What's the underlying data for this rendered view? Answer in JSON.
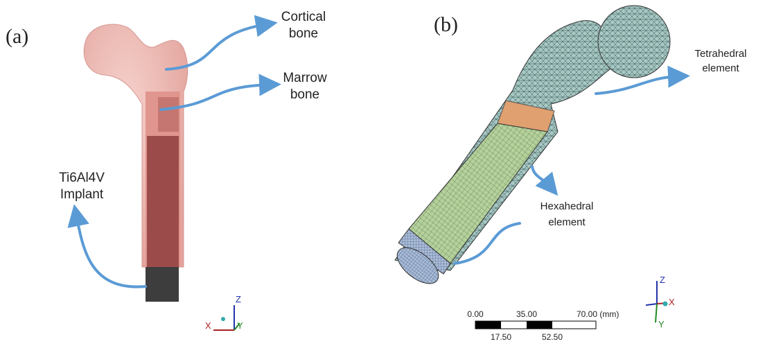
{
  "panel_a": {
    "label": "(a)",
    "cortical": [
      "Cortical",
      "bone"
    ],
    "marrow": [
      "Marrow",
      "bone"
    ],
    "implant": [
      "Ti6Al4V",
      "Implant"
    ],
    "axes": {
      "z": "Z",
      "x": "X",
      "y": "Y"
    }
  },
  "panel_b": {
    "label": "(b)",
    "tetrahedral": [
      "Tetrahedral",
      "element"
    ],
    "hexahedral": [
      "Hexahedral",
      "element"
    ],
    "scale_top": [
      "0.00",
      "35.00",
      "70.00 (mm)"
    ],
    "scale_bottom": [
      "17.50",
      "52.50"
    ],
    "axes": {
      "z": "Z",
      "x": "X",
      "y": "Y"
    }
  }
}
